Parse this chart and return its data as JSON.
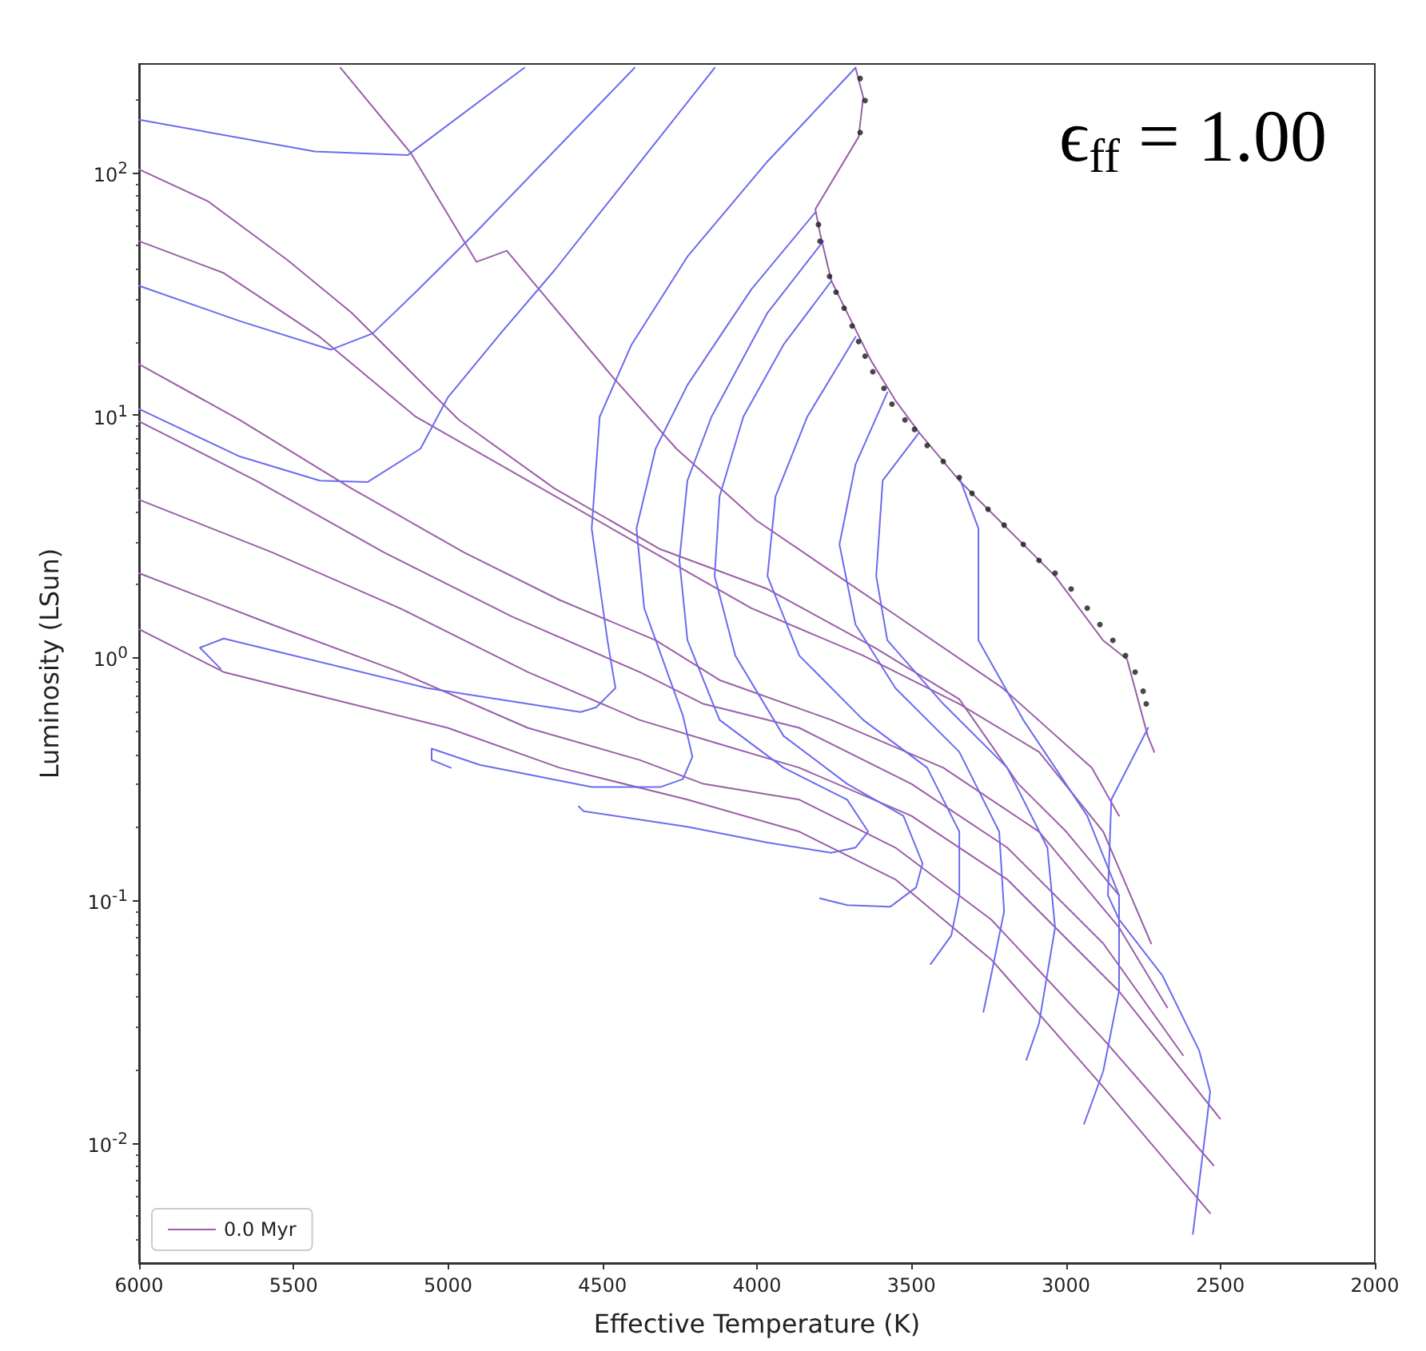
{
  "chart_data": {
    "type": "line",
    "xlabel": "Effective Temperature (K)",
    "ylabel": "Luminosity (LSun)",
    "annotations": [
      "ϵ$_{ff}$ = 1.00"
    ],
    "xlim": [
      6000,
      2000
    ],
    "xticks": [
      6000,
      5500,
      5000,
      4500,
      4000,
      3500,
      3000,
      2500,
      2000
    ],
    "ylim": [
      0.0032,
      280
    ],
    "yticks": [
      {
        "value": 0.01,
        "label": "10$^{-2}$"
      },
      {
        "value": 0.1,
        "label": "10$^{-1}$"
      },
      {
        "value": 1,
        "label": "10$^{0}$"
      },
      {
        "value": 10,
        "label": "10$^{1}$"
      },
      {
        "value": 100,
        "label": "10$^{2}$"
      }
    ],
    "log": "y",
    "grid": false,
    "legend": "bottom left",
    "marker": "none",
    "line_style": "solid",
    "series": [
      {
        "name": "0.0 Myr",
        "color": "#9a5fa8",
        "x": [
          5348,
          5120,
          4908,
          4810,
          4468,
          4261,
          4002,
          3568,
          3205,
          2916,
          2828
        ],
        "values": [
          270,
          120,
          42.8,
          47.6,
          14.4,
          7.27,
          3.68,
          1.55,
          0.75,
          0.352,
          0.223
        ]
      },
      {
        "color": "#9a5fa8",
        "x": [
          3681,
          3656,
          3671,
          3811,
          3796,
          3759,
          3708,
          3630,
          3552,
          3475,
          3345,
          3190,
          3035,
          2880,
          2802,
          2735,
          2714
        ],
        "values": [
          270,
          204,
          140,
          70.6,
          56.2,
          35.7,
          26.4,
          16.7,
          11.5,
          8.47,
          5.37,
          3.41,
          2.17,
          1.18,
          0.985,
          0.476,
          0.409
        ]
      },
      {
        "color": "#9a5fa8",
        "x": [
          6000,
          5778,
          5519,
          5312,
          5105,
          4965,
          4655,
          4313,
          3966,
          3619,
          3345,
          3154,
          2999,
          2828
        ],
        "values": [
          103,
          76.2,
          43.5,
          26.4,
          14.4,
          9.55,
          4.98,
          2.8,
          1.92,
          1.1,
          0.675,
          0.302,
          0.192,
          0.105
        ]
      },
      {
        "color": "#9a5fa8",
        "x": [
          6000,
          5726,
          5415,
          5105,
          4742,
          4380,
          4018,
          3656,
          3345,
          3087,
          2879,
          2724
        ],
        "values": [
          52.1,
          38.5,
          21,
          9.85,
          5.37,
          2.93,
          1.6,
          1.02,
          0.645,
          0.409,
          0.192,
          0.0664
        ]
      },
      {
        "color": "#9a5fa8",
        "x": [
          6000,
          5674,
          5312,
          4949,
          4639,
          4328,
          4121,
          3759,
          3397,
          3087,
          2828,
          2672
        ],
        "values": [
          16.2,
          9.55,
          4.98,
          2.72,
          1.73,
          1.18,
          0.809,
          0.554,
          0.352,
          0.192,
          0.0773,
          0.0362
        ]
      },
      {
        "color": "#9a5fa8",
        "x": [
          6000,
          5622,
          5208,
          4794,
          4380,
          4173,
          3863,
          3500,
          3190,
          2879,
          2621
        ],
        "values": [
          9.42,
          5.37,
          2.72,
          1.48,
          0.873,
          0.645,
          0.514,
          0.302,
          0.165,
          0.0664,
          0.023
        ]
      },
      {
        "color": "#9a5fa8",
        "x": [
          6000,
          5570,
          5156,
          4742,
          4380,
          4121,
          3863,
          3500,
          3190,
          2828,
          2501
        ],
        "values": [
          4.48,
          2.72,
          1.6,
          0.873,
          0.554,
          0.441,
          0.352,
          0.223,
          0.122,
          0.0422,
          0.0126
        ]
      },
      {
        "color": "#9a5fa8",
        "x": [
          6000,
          5570,
          5156,
          4742,
          4380,
          4173,
          3863,
          3552,
          3242,
          2879,
          2522
        ],
        "values": [
          2.23,
          1.37,
          0.873,
          0.514,
          0.379,
          0.302,
          0.26,
          0.165,
          0.0834,
          0.0268,
          0.00809
        ]
      },
      {
        "color": "#9a5fa8",
        "x": [
          6000,
          5726,
          5415,
          5001,
          4639,
          4225,
          3863,
          3552,
          3242,
          2879,
          2533
        ],
        "values": [
          1.31,
          0.873,
          0.695,
          0.514,
          0.352,
          0.26,
          0.192,
          0.122,
          0.0571,
          0.017,
          0.00514
        ]
      },
      {
        "color": "#6b6bef",
        "x": [
          6000,
          5431,
          5130,
          4753
        ],
        "values": [
          165,
          122,
          118,
          270
        ]
      },
      {
        "color": "#6b6bef",
        "x": [
          6000,
          5674,
          5379,
          5244,
          5105,
          4913,
          4396
        ],
        "values": [
          34.1,
          24.4,
          18.6,
          21.7,
          32.1,
          56.2,
          270
        ]
      },
      {
        "color": "#6b6bef",
        "x": [
          6000,
          5674,
          5415,
          5260,
          5089,
          5001,
          4830,
          4654,
          4137
        ],
        "values": [
          10.6,
          6.75,
          5.37,
          5.3,
          7.27,
          11.8,
          21.7,
          39.7,
          270
        ]
      },
      {
        "color": "#6b6bef",
        "x": [
          3681,
          3966,
          4225,
          4406,
          4509,
          4535,
          4484,
          4458,
          4520,
          4571,
          5068,
          5726,
          5803,
          5736
        ],
        "values": [
          270,
          111,
          45,
          19.5,
          9.85,
          3.41,
          1.18,
          0.75,
          0.625,
          0.597,
          0.75,
          1.2,
          1.1,
          0.9
        ]
      },
      {
        "color": "#6b6bef",
        "x": [
          3811,
          4018,
          4225,
          4328,
          4390,
          4365,
          4240,
          4209,
          4240,
          4313,
          4535,
          4898,
          5053,
          5053,
          4991
        ],
        "values": [
          68.5,
          33,
          13.3,
          7.27,
          3.41,
          1.6,
          0.579,
          0.391,
          0.316,
          0.293,
          0.293,
          0.362,
          0.422,
          0.379,
          0.352
        ]
      },
      {
        "color": "#6b6bef",
        "x": [
          3785,
          3966,
          4147,
          4225,
          4251,
          4225,
          4121,
          3914,
          3708,
          3640,
          3681,
          3759,
          3966,
          4225,
          4561,
          4577
        ],
        "values": [
          52.1,
          26.4,
          9.85,
          5.37,
          2.52,
          1.18,
          0.554,
          0.352,
          0.26,
          0.192,
          0.165,
          0.157,
          0.173,
          0.201,
          0.233,
          0.244
        ]
      },
      {
        "color": "#6b6bef",
        "x": [
          3759,
          3914,
          4044,
          4121,
          4137,
          4070,
          3914,
          3708,
          3526,
          3464,
          3485,
          3568,
          3708,
          3796
        ],
        "values": [
          35.7,
          19.5,
          9.85,
          4.62,
          2.17,
          1.02,
          0.476,
          0.302,
          0.223,
          0.142,
          0.113,
          0.0942,
          0.0956,
          0.102
        ]
      },
      {
        "color": "#6b6bef",
        "x": [
          3681,
          3837,
          3940,
          3966,
          3863,
          3656,
          3449,
          3345,
          3345,
          3371,
          3438
        ],
        "values": [
          21,
          9.85,
          4.62,
          2.17,
          1.02,
          0.554,
          0.352,
          0.192,
          0.105,
          0.0716,
          0.0546
        ]
      },
      {
        "color": "#6b6bef",
        "x": [
          3578,
          3681,
          3733,
          3681,
          3552,
          3345,
          3216,
          3200,
          3242,
          3267
        ],
        "values": [
          12.4,
          6.25,
          2.93,
          1.37,
          0.75,
          0.409,
          0.192,
          0.0899,
          0.0491,
          0.0347
        ]
      },
      {
        "color": "#6b6bef",
        "x": [
          3475,
          3593,
          3614,
          3578,
          3397,
          3190,
          3060,
          3035,
          3087,
          3128
        ],
        "values": [
          8.47,
          5.37,
          2.17,
          1.18,
          0.645,
          0.352,
          0.165,
          0.0773,
          0.0311,
          0.022
        ]
      },
      {
        "color": "#6b6bef",
        "x": [
          3345,
          3283,
          3283,
          3138,
          2931,
          2828,
          2828,
          2879,
          2941
        ],
        "values": [
          5.53,
          3.41,
          1.18,
          0.554,
          0.223,
          0.105,
          0.0422,
          0.0198,
          0.012
        ]
      },
      {
        "color": "#6b6bef",
        "x": [
          2734,
          2853,
          2864,
          2828,
          2688,
          2569,
          2533,
          2543,
          2589
        ],
        "values": [
          0.514,
          0.26,
          0.105,
          0.0834,
          0.0491,
          0.0241,
          0.0163,
          0.0126,
          0.00422
        ]
      },
      {
        "type": "scatter",
        "marker": "circle",
        "color": "#1a1a1a",
        "x": [
          3666,
          3650,
          3666,
          3801,
          3796,
          3765,
          3744,
          3718,
          3692,
          3671,
          3650,
          3625,
          3589,
          3563,
          3521,
          3490,
          3449,
          3397,
          3345,
          3304,
          3252,
          3200,
          3138,
          3087,
          3035,
          2983,
          2931,
          2890,
          2848,
          2807,
          2776,
          2750,
          2740
        ],
        "values": [
          244,
          198,
          146,
          61,
          52.1,
          37.3,
          32.1,
          27.6,
          23.3,
          20.1,
          17.5,
          15.1,
          12.9,
          11.1,
          9.55,
          8.73,
          7.5,
          6.44,
          5.53,
          4.76,
          4.09,
          3.52,
          2.93,
          2.52,
          2.23,
          1.92,
          1.6,
          1.37,
          1.18,
          1.02,
          0.873,
          0.728,
          0.645
        ]
      }
    ]
  }
}
